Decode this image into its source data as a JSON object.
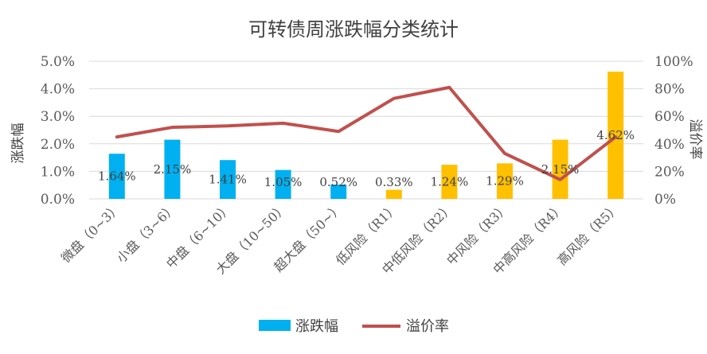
{
  "chart_data": {
    "type": "bar",
    "title": "可转债周涨跌幅分类统计",
    "categories": [
      "微盘（0~3）",
      "小盘（3~6）",
      "中盘（6~10）",
      "大盘（10~50）",
      "超大盘（50~）",
      "低风险（R1）",
      "中低风险（R2）",
      "中风险（R3）",
      "中高风险（R4）",
      "高风险（R5）"
    ],
    "series": [
      {
        "name": "涨跌幅",
        "type": "bar",
        "axis": "left",
        "values": [
          1.64,
          2.15,
          1.41,
          1.05,
          0.52,
          0.33,
          1.24,
          1.29,
          2.15,
          4.62
        ],
        "value_labels": [
          "1.64%",
          "2.15%",
          "1.41%",
          "1.05%",
          "0.52%",
          "0.33%",
          "1.24%",
          "1.29%",
          "2.15%",
          "4.62%"
        ],
        "point_colors": [
          "#00b0f0",
          "#00b0f0",
          "#00b0f0",
          "#00b0f0",
          "#00b0f0",
          "#ffc000",
          "#ffc000",
          "#ffc000",
          "#ffc000",
          "#ffc000"
        ]
      },
      {
        "name": "溢价率",
        "type": "line",
        "axis": "right",
        "values": [
          45,
          52,
          53,
          55,
          49,
          73,
          81,
          33,
          14,
          45
        ],
        "color": "#c0504d"
      }
    ],
    "ylabel": "涨跌幅",
    "ylim": [
      0,
      5
    ],
    "yticks": [
      "0.0%",
      "1.0%",
      "2.0%",
      "3.0%",
      "4.0%",
      "5.0%"
    ],
    "y2label": "溢价率",
    "y2lim": [
      0,
      100
    ],
    "y2ticks": [
      "0%",
      "20%",
      "40%",
      "60%",
      "80%",
      "100%"
    ],
    "grid": true,
    "legend": "bottom",
    "colors": {
      "bar_size": "#00b0f0",
      "bar_risk": "#ffc000",
      "line": "#c0504d",
      "grid": "#d9d9d9"
    }
  }
}
